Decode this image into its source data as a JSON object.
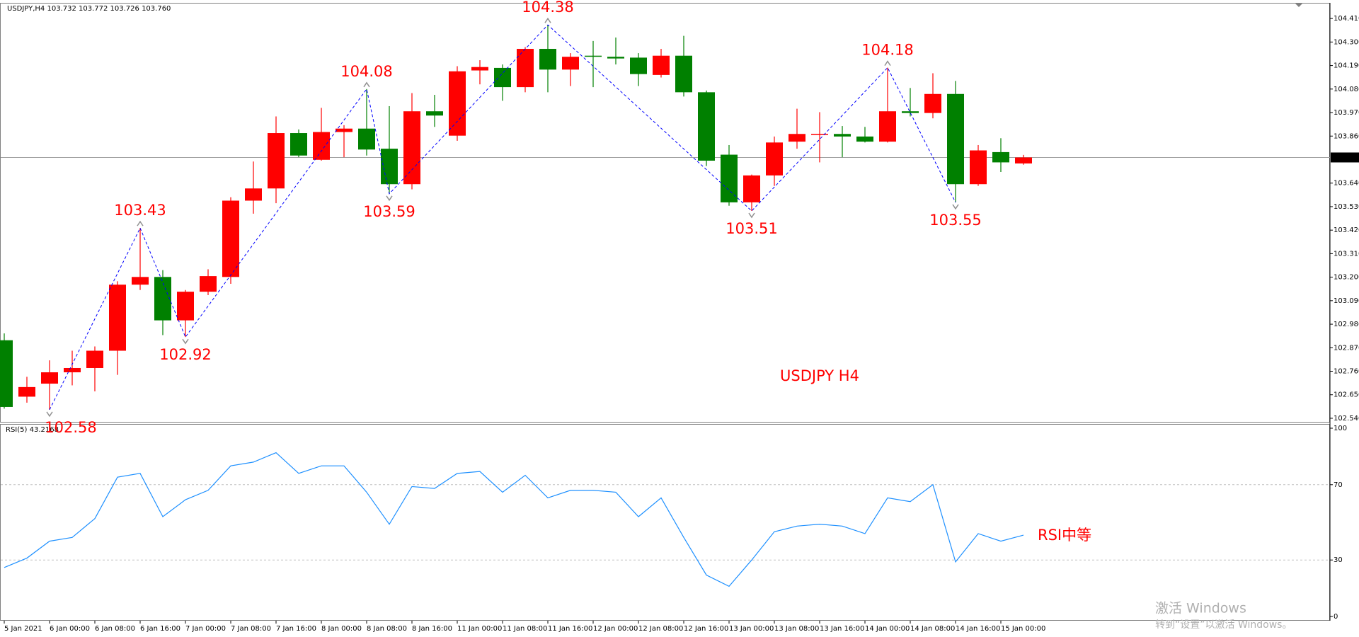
{
  "chart_data": [
    {
      "type": "candlestick",
      "title": "USDJPY,H4  103.732 103.772 103.726 103.760",
      "annotation": "USDJPY H4",
      "categories": [
        "5 Jan 2021",
        null,
        "6 Jan 00:00",
        null,
        "6 Jan 08:00",
        null,
        "6 Jan 16:00",
        null,
        "7 Jan 00:00",
        null,
        "7 Jan 08:00",
        null,
        "7 Jan 16:00",
        null,
        "8 Jan 00:00",
        null,
        "8 Jan 08:00",
        null,
        "8 Jan 16:00",
        null,
        "11 Jan 00:00",
        null,
        "11 Jan 08:00",
        null,
        "11 Jan 16:00",
        null,
        "12 Jan 00:00",
        null,
        "12 Jan 08:00",
        null,
        "12 Jan 16:00",
        null,
        "13 Jan 00:00",
        null,
        "13 Jan 08:00",
        null,
        "13 Jan 16:00",
        null,
        "14 Jan 00:00",
        null,
        "14 Jan 08:00",
        null,
        "14 Jan 16:00",
        null,
        "15 Jan 00:00",
        null
      ],
      "open": [
        102.905,
        102.641,
        102.702,
        102.755,
        102.775,
        102.856,
        103.165,
        103.201,
        102.998,
        103.132,
        103.201,
        103.558,
        103.615,
        103.874,
        103.749,
        103.879,
        103.895,
        103.801,
        103.635,
        103.976,
        103.862,
        104.167,
        104.179,
        104.089,
        104.268,
        104.171,
        104.236,
        104.231,
        104.227,
        104.146,
        104.236,
        104.065,
        103.773,
        103.55,
        103.676,
        103.834,
        103.866,
        103.87,
        103.858,
        103.834,
        103.976,
        103.968,
        104.057,
        103.635,
        103.785,
        103.732
      ],
      "high": [
        102.937,
        102.734,
        102.811,
        102.856,
        102.876,
        103.181,
        103.43,
        103.233,
        103.14,
        103.237,
        103.574,
        103.741,
        103.952,
        103.891,
        103.992,
        103.911,
        104.08,
        104.0,
        104.061,
        104.053,
        104.187,
        104.215,
        104.195,
        104.276,
        104.38,
        104.248,
        104.305,
        104.321,
        104.248,
        104.268,
        104.329,
        104.073,
        103.818,
        103.68,
        103.858,
        103.988,
        103.972,
        103.907,
        103.903,
        104.18,
        104.085,
        104.154,
        104.118,
        103.818,
        103.85,
        103.772
      ],
      "low": [
        102.585,
        102.613,
        102.58,
        102.694,
        102.666,
        102.743,
        103.14,
        102.929,
        102.92,
        103.116,
        103.169,
        103.497,
        103.546,
        103.761,
        103.745,
        103.761,
        103.769,
        103.59,
        103.611,
        103.903,
        103.838,
        104.102,
        104.025,
        104.065,
        104.065,
        104.094,
        104.089,
        104.195,
        104.094,
        104.134,
        104.045,
        103.72,
        103.534,
        103.51,
        103.627,
        103.801,
        103.737,
        103.761,
        103.83,
        103.83,
        103.952,
        103.943,
        103.55,
        103.627,
        103.692,
        103.726
      ],
      "close": [
        102.593,
        102.686,
        102.755,
        102.775,
        102.856,
        103.165,
        103.201,
        102.998,
        103.132,
        103.205,
        103.558,
        103.615,
        103.874,
        103.769,
        103.879,
        103.895,
        103.797,
        103.635,
        103.976,
        103.956,
        104.163,
        104.183,
        104.089,
        104.268,
        104.171,
        104.231,
        104.231,
        104.223,
        104.15,
        104.236,
        104.065,
        103.745,
        103.55,
        103.676,
        103.83,
        103.87,
        103.87,
        103.858,
        103.834,
        103.976,
        103.968,
        104.057,
        103.635,
        103.793,
        103.737,
        103.76
      ],
      "swing_labels": [
        null,
        null,
        102.58,
        null,
        null,
        null,
        103.43,
        null,
        102.92,
        null,
        null,
        null,
        null,
        null,
        null,
        null,
        104.08,
        103.59,
        null,
        null,
        null,
        null,
        null,
        null,
        104.38,
        null,
        null,
        null,
        null,
        null,
        null,
        null,
        null,
        103.51,
        null,
        null,
        null,
        null,
        null,
        104.18,
        null,
        null,
        103.55,
        null,
        null,
        null
      ],
      "up_color": "#ff0000",
      "down_color": "#008000",
      "zigzag_color": "#0000ff",
      "ylim": [
        102.52,
        104.48
      ],
      "yticks": [
        {
          "value": 104.41,
          "label": "104.410"
        },
        {
          "value": 104.3,
          "label": "104.300"
        },
        {
          "value": 104.19,
          "label": "104.190"
        },
        {
          "value": 104.08,
          "label": "104.080"
        },
        {
          "value": 103.97,
          "label": "103.970"
        },
        {
          "value": 103.86,
          "label": "103.860"
        },
        {
          "value": 103.64,
          "label": "103.640"
        },
        {
          "value": 103.53,
          "label": "103.530"
        },
        {
          "value": 103.42,
          "label": "103.420"
        },
        {
          "value": 103.31,
          "label": "103.310"
        },
        {
          "value": 103.2,
          "label": "103.200"
        },
        {
          "value": 103.09,
          "label": "103.090"
        },
        {
          "value": 102.98,
          "label": "102.980"
        },
        {
          "value": 102.87,
          "label": "102.870"
        },
        {
          "value": 102.76,
          "label": "102.760"
        },
        {
          "value": 102.65,
          "label": "102.650"
        },
        {
          "value": 102.54,
          "label": "102.540"
        }
      ],
      "current_price": {
        "value": 103.76,
        "label": "103.760"
      }
    },
    {
      "type": "line",
      "title": "RSI(5) 43.2168",
      "annotation": "RSI中等",
      "values": [
        26,
        31,
        40,
        42,
        52,
        74,
        76,
        53,
        62,
        67,
        80,
        82,
        87,
        76,
        80,
        80,
        66,
        49,
        69,
        68,
        76,
        77,
        66,
        75,
        63,
        67,
        67,
        66,
        53,
        63,
        42,
        22,
        16,
        30,
        45,
        48,
        49,
        48,
        44,
        63,
        61,
        70,
        29,
        44,
        40,
        43.2168
      ],
      "color": "#1e90ff",
      "ylim": [
        0,
        100
      ],
      "yticks": [
        0,
        30,
        70,
        100
      ],
      "levels": [
        30,
        70
      ]
    }
  ],
  "watermark": {
    "title": "激活 Windows",
    "subtitle": "转到“设置”以激活 Windows。"
  }
}
